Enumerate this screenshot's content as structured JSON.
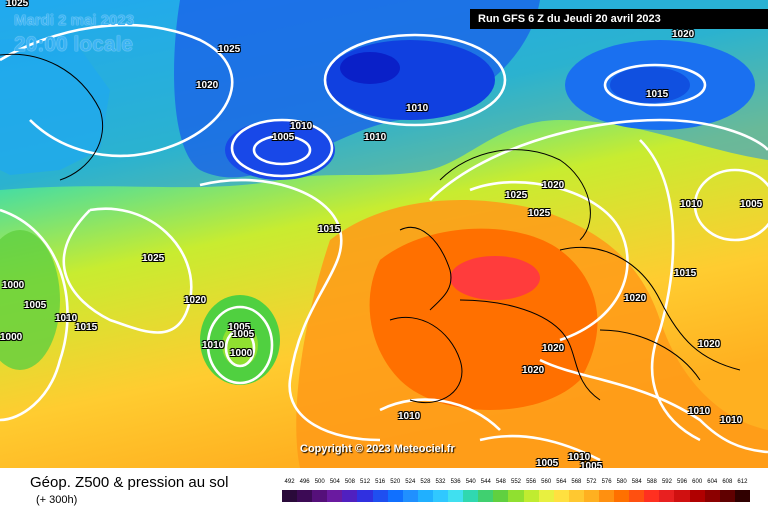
{
  "map": {
    "date_line": "Mardi 2 mai 2023",
    "time_line": "20:00 locale",
    "run_info": "Run GFS 6 Z du Jeudi 20 avril 2023",
    "copyright": "Copyright © 2023 Meteociel.fr",
    "isobar_labels": [
      "1025",
      "1020",
      "1010",
      "1005",
      "1010",
      "1010",
      "1025",
      "1020",
      "1015",
      "1000",
      "1005",
      "1010",
      "1015",
      "1020",
      "1005",
      "1005",
      "1010",
      "1000",
      "1010",
      "1025",
      "1025",
      "1020",
      "1010",
      "1020",
      "1005",
      "1010",
      "1015",
      "1020",
      "1020",
      "1020",
      "1020",
      "1020",
      "1010",
      "1010",
      "1010",
      "1005",
      "1005",
      "1010",
      "1025"
    ]
  },
  "legend": {
    "title": "Géop. Z500 & pression au sol",
    "subtitle": "(+ 300h)",
    "scale_values": [
      "492",
      "496",
      "500",
      "504",
      "508",
      "512",
      "516",
      "520",
      "524",
      "528",
      "532",
      "536",
      "540",
      "544",
      "548",
      "552",
      "556",
      "560",
      "564",
      "568",
      "572",
      "576",
      "580",
      "584",
      "588",
      "592",
      "596",
      "600",
      "604",
      "608",
      "612"
    ],
    "scale_colors": [
      "#2a0a3a",
      "#3c0a55",
      "#55107a",
      "#6a1aa0",
      "#5020c0",
      "#3030e0",
      "#1f4ff0",
      "#1070ff",
      "#2090ff",
      "#20b0ff",
      "#30c8ff",
      "#40e0f0",
      "#30d8b0",
      "#40d070",
      "#60d040",
      "#90e030",
      "#c0ec30",
      "#e8f040",
      "#ffe040",
      "#ffc830",
      "#ffb020",
      "#ff9010",
      "#ff7000",
      "#ff5010",
      "#ff3020",
      "#e82020",
      "#d01010",
      "#b00000",
      "#8c0000",
      "#600000",
      "#300000"
    ]
  }
}
